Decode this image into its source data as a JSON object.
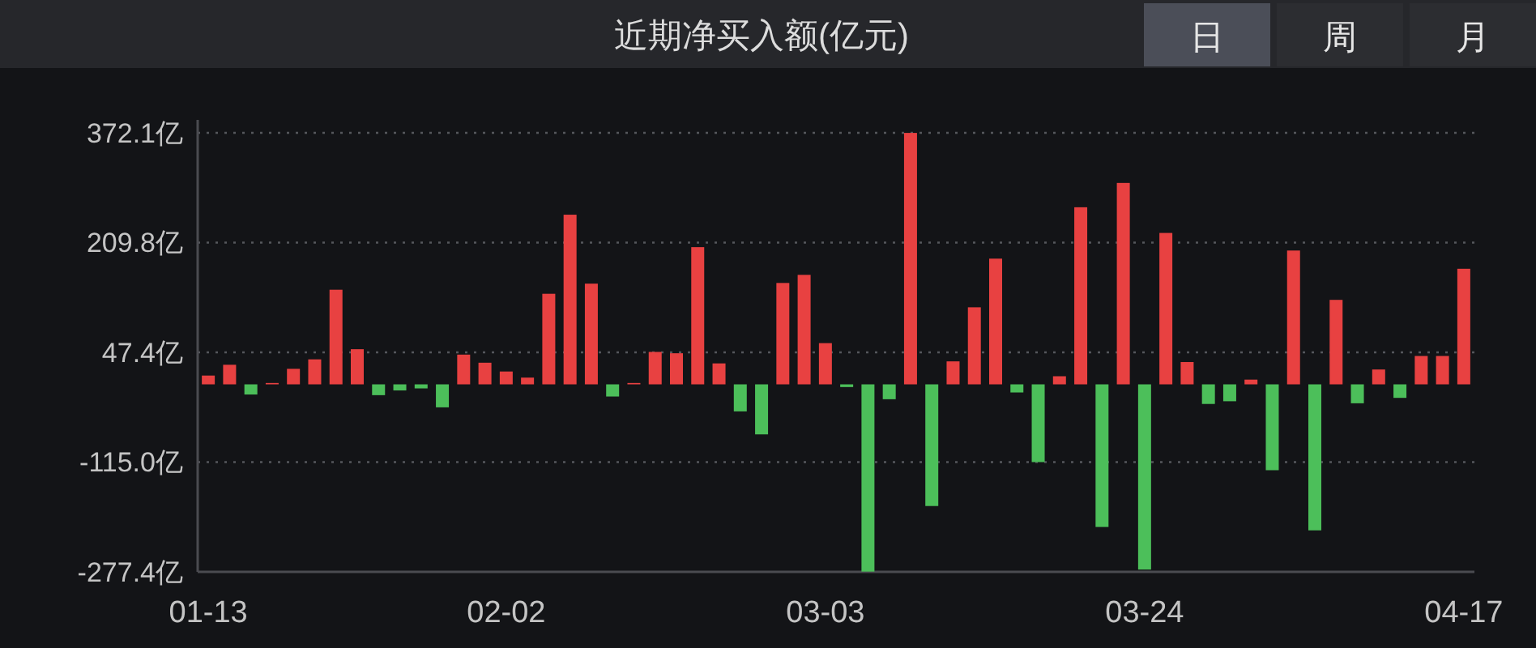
{
  "chart_data": {
    "type": "bar",
    "title": "近期净买入额(亿元)",
    "annotations": [
      "日",
      "周",
      "月"
    ],
    "categories": [
      "01-13",
      null,
      null,
      null,
      null,
      null,
      null,
      null,
      null,
      null,
      null,
      null,
      null,
      null,
      "02-02",
      null,
      null,
      null,
      null,
      null,
      null,
      null,
      null,
      null,
      null,
      null,
      null,
      null,
      null,
      "03-03",
      null,
      null,
      null,
      null,
      null,
      null,
      null,
      null,
      null,
      null,
      null,
      null,
      null,
      null,
      "03-24",
      null,
      null,
      null,
      null,
      null,
      null,
      null,
      null,
      null,
      null,
      null,
      null,
      null,
      null,
      "04-17"
    ],
    "values": [
      13,
      29,
      -15,
      2,
      23,
      37,
      140,
      52,
      -16,
      -9,
      -6,
      -34,
      44,
      32,
      19,
      10,
      134,
      251,
      149,
      -18,
      2,
      48,
      46,
      203,
      31,
      -40,
      -74,
      150,
      162,
      61,
      -4,
      -277,
      -22,
      372,
      -180,
      34,
      114,
      186,
      -12,
      -115,
      12,
      262,
      -211,
      298,
      -274,
      224,
      33,
      -29,
      -25,
      7,
      -127,
      198,
      -216,
      125,
      -28,
      22,
      -20,
      42,
      42,
      171
    ],
    "colors": [
      "#e84141",
      "#e84141",
      "#4cbf5a",
      "#e84141",
      "#e84141",
      "#e84141",
      "#e84141",
      "#e84141",
      "#4cbf5a",
      "#4cbf5a",
      "#4cbf5a",
      "#4cbf5a",
      "#e84141",
      "#e84141",
      "#e84141",
      "#e84141",
      "#e84141",
      "#e84141",
      "#e84141",
      "#4cbf5a",
      "#e84141",
      "#e84141",
      "#e84141",
      "#e84141",
      "#e84141",
      "#4cbf5a",
      "#4cbf5a",
      "#e84141",
      "#e84141",
      "#e84141",
      "#4cbf5a",
      "#4cbf5a",
      "#4cbf5a",
      "#e84141",
      "#4cbf5a",
      "#e84141",
      "#e84141",
      "#e84141",
      "#4cbf5a",
      "#4cbf5a",
      "#e84141",
      "#e84141",
      "#4cbf5a",
      "#e84141",
      "#4cbf5a",
      "#e84141",
      "#e84141",
      "#4cbf5a",
      "#4cbf5a",
      "#e84141",
      "#4cbf5a",
      "#e84141",
      "#4cbf5a",
      "#e84141",
      "#4cbf5a",
      "#e84141",
      "#4cbf5a",
      "#e84141",
      "#e84141",
      "#e84141"
    ],
    "ylim": [
      -277.4,
      372.1
    ],
    "yticks": [
      {
        "value": -277.4,
        "label": "-277.4亿"
      },
      {
        "value": -115.0,
        "label": "-115.0亿"
      },
      {
        "value": 47.4,
        "label": "47.4亿"
      },
      {
        "value": 209.8,
        "label": "209.8亿"
      },
      {
        "value": 372.1,
        "label": "372.1亿"
      }
    ],
    "grid": "y"
  }
}
